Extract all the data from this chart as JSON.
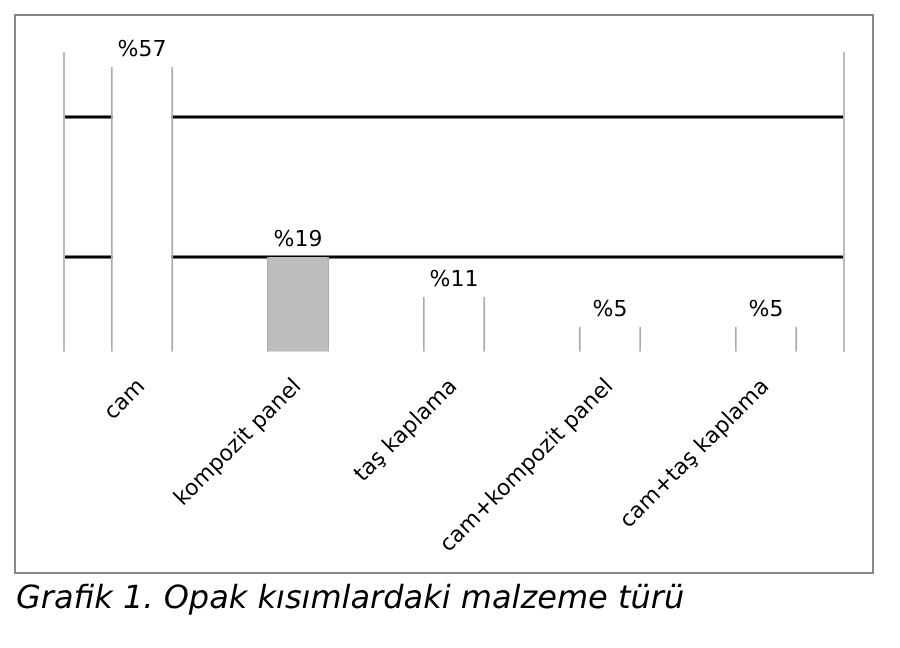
{
  "chart_data": {
    "type": "bar",
    "title": "Grafik 1. Opak kısımlardaki malzeme türü",
    "categories": [
      "cam",
      "kompozit panel",
      "taş kaplama",
      "cam+kompozit panel",
      "cam+taş kaplama"
    ],
    "values": [
      57,
      19,
      11,
      5,
      5
    ],
    "colors": [
      "#ffffff",
      "#bdbdbd",
      "#ffffff",
      "#ffffff",
      "#ffffff"
    ],
    "value_labels": [
      "%57",
      "%19",
      "%11",
      "%5",
      "%5"
    ],
    "ref_lines": [
      {
        "axis": "y",
        "value": 47,
        "color": "#000000"
      },
      {
        "axis": "y",
        "value": 19,
        "color": "#000000"
      }
    ],
    "grid": false,
    "legend": false
  }
}
